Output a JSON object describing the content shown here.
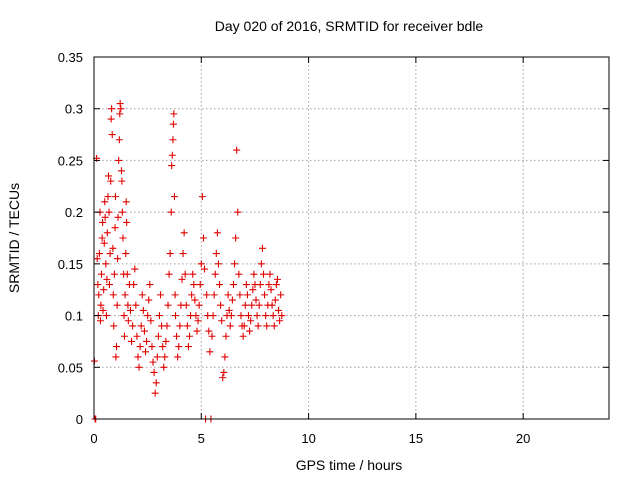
{
  "chart_data": {
    "type": "scatter",
    "title": "Day 020 of 2016, SRMTID for receiver bdle",
    "xlabel": "GPS time / hours",
    "ylabel": "SRMTID / TECUs",
    "xlim": [
      0,
      24
    ],
    "ylim": [
      0,
      0.35
    ],
    "grid": true,
    "marker": "+",
    "color": "#e00000",
    "x_ticks": [
      0,
      5,
      10,
      15,
      20
    ],
    "x_tick_labels": [
      "0",
      "5",
      "10",
      "15",
      "20"
    ],
    "y_ticks": [
      0,
      0.05,
      0.1,
      0.15,
      0.2,
      0.25,
      0.3,
      0.35
    ],
    "y_tick_labels": [
      "0",
      "0.05",
      "0.1",
      "0.15",
      "0.2",
      "0.25",
      "0.3",
      "0.35"
    ],
    "series": [
      {
        "name": "SRMTID",
        "points": [
          [
            0.02,
            0.056
          ],
          [
            0.05,
            0.0
          ],
          [
            0.08,
            0.0
          ],
          [
            0.12,
            0.252
          ],
          [
            0.15,
            0.155
          ],
          [
            0.18,
            0.13
          ],
          [
            0.2,
            0.1
          ],
          [
            0.22,
            0.12
          ],
          [
            0.25,
            0.16
          ],
          [
            0.28,
            0.2
          ],
          [
            0.3,
            0.095
          ],
          [
            0.32,
            0.11
          ],
          [
            0.35,
            0.14
          ],
          [
            0.38,
            0.175
          ],
          [
            0.4,
            0.19
          ],
          [
            0.42,
            0.105
          ],
          [
            0.45,
            0.125
          ],
          [
            0.48,
            0.17
          ],
          [
            0.5,
            0.21
          ],
          [
            0.52,
            0.195
          ],
          [
            0.55,
            0.15
          ],
          [
            0.58,
            0.1
          ],
          [
            0.6,
            0.135
          ],
          [
            0.62,
            0.18
          ],
          [
            0.65,
            0.215
          ],
          [
            0.68,
            0.235
          ],
          [
            0.7,
            0.2
          ],
          [
            0.72,
            0.13
          ],
          [
            0.75,
            0.16
          ],
          [
            0.78,
            0.23
          ],
          [
            0.8,
            0.29
          ],
          [
            0.82,
            0.3
          ],
          [
            0.85,
            0.275
          ],
          [
            0.88,
            0.165
          ],
          [
            0.9,
            0.12
          ],
          [
            0.92,
            0.09
          ],
          [
            0.95,
            0.14
          ],
          [
            0.98,
            0.185
          ],
          [
            1.0,
            0.215
          ],
          [
            1.02,
            0.06
          ],
          [
            1.05,
            0.07
          ],
          [
            1.08,
            0.11
          ],
          [
            1.1,
            0.155
          ],
          [
            1.12,
            0.195
          ],
          [
            1.15,
            0.25
          ],
          [
            1.18,
            0.27
          ],
          [
            1.2,
            0.295
          ],
          [
            1.22,
            0.305
          ],
          [
            1.25,
            0.3
          ],
          [
            1.28,
            0.24
          ],
          [
            1.3,
            0.23
          ],
          [
            1.32,
            0.2
          ],
          [
            1.35,
            0.175
          ],
          [
            1.38,
            0.14
          ],
          [
            1.4,
            0.1
          ],
          [
            1.42,
            0.08
          ],
          [
            1.45,
            0.12
          ],
          [
            1.48,
            0.16
          ],
          [
            1.5,
            0.21
          ],
          [
            1.52,
            0.19
          ],
          [
            1.55,
            0.14
          ],
          [
            1.58,
            0.11
          ],
          [
            1.6,
            0.095
          ],
          [
            1.65,
            0.13
          ],
          [
            1.7,
            0.105
          ],
          [
            1.75,
            0.075
          ],
          [
            1.8,
            0.09
          ],
          [
            1.85,
            0.13
          ],
          [
            1.9,
            0.145
          ],
          [
            1.95,
            0.11
          ],
          [
            2.0,
            0.08
          ],
          [
            2.05,
            0.06
          ],
          [
            2.1,
            0.05
          ],
          [
            2.15,
            0.07
          ],
          [
            2.2,
            0.09
          ],
          [
            2.25,
            0.12
          ],
          [
            2.3,
            0.105
          ],
          [
            2.35,
            0.085
          ],
          [
            2.4,
            0.065
          ],
          [
            2.45,
            0.075
          ],
          [
            2.5,
            0.1
          ],
          [
            2.55,
            0.115
          ],
          [
            2.6,
            0.13
          ],
          [
            2.65,
            0.095
          ],
          [
            2.7,
            0.07
          ],
          [
            2.75,
            0.055
          ],
          [
            2.8,
            0.045
          ],
          [
            2.85,
            0.025
          ],
          [
            2.9,
            0.035
          ],
          [
            2.95,
            0.06
          ],
          [
            3.0,
            0.08
          ],
          [
            3.05,
            0.1
          ],
          [
            3.1,
            0.12
          ],
          [
            3.15,
            0.09
          ],
          [
            3.2,
            0.07
          ],
          [
            3.25,
            0.05
          ],
          [
            3.3,
            0.06
          ],
          [
            3.35,
            0.075
          ],
          [
            3.4,
            0.09
          ],
          [
            3.45,
            0.11
          ],
          [
            3.5,
            0.14
          ],
          [
            3.55,
            0.16
          ],
          [
            3.6,
            0.2
          ],
          [
            3.62,
            0.245
          ],
          [
            3.65,
            0.255
          ],
          [
            3.68,
            0.27
          ],
          [
            3.7,
            0.285
          ],
          [
            3.72,
            0.295
          ],
          [
            3.75,
            0.215
          ],
          [
            3.78,
            0.12
          ],
          [
            3.8,
            0.1
          ],
          [
            3.85,
            0.08
          ],
          [
            3.9,
            0.06
          ],
          [
            3.95,
            0.07
          ],
          [
            4.0,
            0.09
          ],
          [
            4.05,
            0.11
          ],
          [
            4.1,
            0.135
          ],
          [
            4.15,
            0.16
          ],
          [
            4.2,
            0.18
          ],
          [
            4.25,
            0.14
          ],
          [
            4.3,
            0.11
          ],
          [
            4.35,
            0.09
          ],
          [
            4.4,
            0.07
          ],
          [
            4.45,
            0.08
          ],
          [
            4.5,
            0.1
          ],
          [
            4.55,
            0.12
          ],
          [
            4.6,
            0.14
          ],
          [
            4.65,
            0.13
          ],
          [
            4.7,
            0.115
          ],
          [
            4.75,
            0.1
          ],
          [
            4.8,
            0.085
          ],
          [
            4.85,
            0.095
          ],
          [
            4.9,
            0.11
          ],
          [
            4.95,
            0.13
          ],
          [
            5.0,
            0.15
          ],
          [
            5.05,
            0.215
          ],
          [
            5.1,
            0.175
          ],
          [
            5.15,
            0.145
          ],
          [
            5.2,
            0.0
          ],
          [
            5.25,
            0.12
          ],
          [
            5.3,
            0.1
          ],
          [
            5.35,
            0.085
          ],
          [
            5.4,
            0.065
          ],
          [
            5.45,
            0.0
          ],
          [
            5.5,
            0.08
          ],
          [
            5.55,
            0.1
          ],
          [
            5.6,
            0.12
          ],
          [
            5.65,
            0.14
          ],
          [
            5.7,
            0.16
          ],
          [
            5.75,
            0.18
          ],
          [
            5.8,
            0.15
          ],
          [
            5.85,
            0.13
          ],
          [
            5.9,
            0.11
          ],
          [
            5.95,
            0.095
          ],
          [
            6.0,
            0.04
          ],
          [
            6.05,
            0.045
          ],
          [
            6.1,
            0.06
          ],
          [
            6.15,
            0.08
          ],
          [
            6.2,
            0.1
          ],
          [
            6.25,
            0.12
          ],
          [
            6.3,
            0.105
          ],
          [
            6.35,
            0.09
          ],
          [
            6.4,
            0.1
          ],
          [
            6.45,
            0.115
          ],
          [
            6.5,
            0.13
          ],
          [
            6.55,
            0.15
          ],
          [
            6.6,
            0.175
          ],
          [
            6.65,
            0.26
          ],
          [
            6.7,
            0.2
          ],
          [
            6.75,
            0.14
          ],
          [
            6.8,
            0.12
          ],
          [
            6.85,
            0.1
          ],
          [
            6.9,
            0.09
          ],
          [
            6.95,
            0.08
          ],
          [
            7.0,
            0.09
          ],
          [
            7.05,
            0.11
          ],
          [
            7.1,
            0.13
          ],
          [
            7.15,
            0.12
          ],
          [
            7.2,
            0.1
          ],
          [
            7.25,
            0.085
          ],
          [
            7.3,
            0.095
          ],
          [
            7.35,
            0.11
          ],
          [
            7.4,
            0.125
          ],
          [
            7.45,
            0.14
          ],
          [
            7.5,
            0.13
          ],
          [
            7.55,
            0.115
          ],
          [
            7.6,
            0.1
          ],
          [
            7.65,
            0.09
          ],
          [
            7.7,
            0.11
          ],
          [
            7.75,
            0.13
          ],
          [
            7.8,
            0.15
          ],
          [
            7.85,
            0.165
          ],
          [
            7.9,
            0.14
          ],
          [
            7.95,
            0.12
          ],
          [
            8.0,
            0.1
          ],
          [
            8.05,
            0.09
          ],
          [
            8.1,
            0.11
          ],
          [
            8.15,
            0.13
          ],
          [
            8.2,
            0.14
          ],
          [
            8.25,
            0.125
          ],
          [
            8.3,
            0.11
          ],
          [
            8.35,
            0.1
          ],
          [
            8.4,
            0.09
          ],
          [
            8.45,
            0.115
          ],
          [
            8.5,
            0.13
          ],
          [
            8.55,
            0.135
          ],
          [
            8.6,
            0.105
          ],
          [
            8.65,
            0.095
          ],
          [
            8.7,
            0.12
          ],
          [
            8.75,
            0.1
          ]
        ]
      }
    ]
  }
}
